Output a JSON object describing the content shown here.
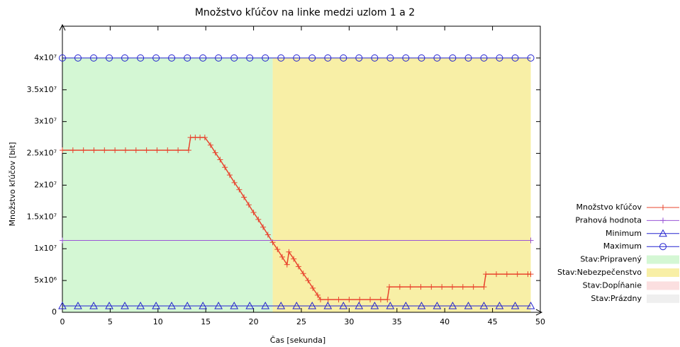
{
  "chart_data": {
    "type": "line",
    "title": "Množstvo kľúčov na linke medzi uzlom 1 a 2",
    "xlabel": "Čas [sekunda]",
    "ylabel": "Množstvo kľúčov [bit]",
    "xlim": [
      0,
      50
    ],
    "xticks": [
      0,
      5,
      10,
      15,
      20,
      25,
      30,
      35,
      40,
      45,
      50
    ],
    "ylim": [
      0,
      45000000
    ],
    "yticks": [
      0,
      {
        "value": 5000000,
        "label": "5x10⁶"
      },
      {
        "value": 10000000,
        "label": "1x10⁷"
      },
      {
        "value": 15000000,
        "label": "1.5x10⁷"
      },
      {
        "value": 20000000,
        "label": "2x10⁷"
      },
      {
        "value": 25000000,
        "label": "2.5x10⁷"
      },
      {
        "value": 30000000,
        "label": "3x10⁷"
      },
      {
        "value": 35000000,
        "label": "3.5x10⁷"
      },
      {
        "value": 40000000,
        "label": "4x10⁷"
      }
    ],
    "legend": "right",
    "series": [
      {
        "name": "Množstvo kľúčov",
        "color": "#e8442e",
        "marker": "plus",
        "x": [
          0,
          1.1,
          2.2,
          3.3,
          4.4,
          5.5,
          6.6,
          7.7,
          8.8,
          9.9,
          11,
          12.1,
          13.2,
          13.4,
          13.9,
          14.4,
          14.9,
          15.5,
          16,
          16.5,
          17,
          17.5,
          18,
          18.5,
          19,
          19.5,
          20,
          20.5,
          21,
          21.5,
          22,
          22.5,
          23,
          23.5,
          23.7,
          24.2,
          24.7,
          25.2,
          25.7,
          26.2,
          26.7,
          27,
          27.8,
          28.9,
          30,
          31.1,
          32.2,
          33.3,
          34,
          34.2,
          35.3,
          36.4,
          37.5,
          38.6,
          39.7,
          40.8,
          41.9,
          43,
          44.1,
          44.3,
          45.4,
          46.5,
          47.6,
          48.7,
          49
        ],
        "values": [
          25500000,
          25500000,
          25500000,
          25500000,
          25500000,
          25500000,
          25500000,
          25500000,
          25500000,
          25500000,
          25500000,
          25500000,
          25500000,
          27500000,
          27500000,
          27500000,
          27500000,
          26300000,
          25100000,
          24000000,
          22800000,
          21600000,
          20400000,
          19300000,
          18100000,
          16900000,
          15700000,
          14600000,
          13400000,
          12200000,
          11000000,
          9900000,
          8700000,
          7500000,
          9500000,
          8400000,
          7200000,
          6100000,
          5000000,
          3800000,
          2700000,
          2000000,
          2000000,
          2000000,
          2000000,
          2000000,
          2000000,
          2000000,
          2000000,
          4000000,
          4000000,
          4000000,
          4000000,
          4000000,
          4000000,
          4000000,
          4000000,
          4000000,
          4000000,
          6000000,
          6000000,
          6000000,
          6000000,
          6000000,
          6000000
        ]
      },
      {
        "name": "Prahová hodnota",
        "color": "#9a55d6",
        "marker": "plus",
        "x": [
          0,
          49
        ],
        "values": [
          11300000,
          11300000
        ]
      },
      {
        "name": "Minimum",
        "color": "#2323d0",
        "marker": "triangle",
        "x": [
          0,
          1.63,
          3.27,
          4.9,
          6.53,
          8.17,
          9.8,
          11.43,
          13.07,
          14.7,
          16.33,
          17.97,
          19.6,
          21.23,
          22.87,
          24.5,
          26.13,
          27.77,
          29.4,
          31.03,
          32.67,
          34.3,
          35.93,
          37.57,
          39.2,
          40.83,
          42.47,
          44.1,
          45.73,
          47.37,
          49
        ],
        "values": [
          1000000,
          1000000,
          1000000,
          1000000,
          1000000,
          1000000,
          1000000,
          1000000,
          1000000,
          1000000,
          1000000,
          1000000,
          1000000,
          1000000,
          1000000,
          1000000,
          1000000,
          1000000,
          1000000,
          1000000,
          1000000,
          1000000,
          1000000,
          1000000,
          1000000,
          1000000,
          1000000,
          1000000,
          1000000,
          1000000,
          1000000
        ]
      },
      {
        "name": "Maximum",
        "color": "#2323d0",
        "marker": "circle",
        "x": [
          0,
          1.63,
          3.27,
          4.9,
          6.53,
          8.17,
          9.8,
          11.43,
          13.07,
          14.7,
          16.33,
          17.97,
          19.6,
          21.23,
          22.87,
          24.5,
          26.13,
          27.77,
          29.4,
          31.03,
          32.67,
          34.3,
          35.93,
          37.57,
          39.2,
          40.83,
          42.47,
          44.1,
          45.73,
          47.37,
          49
        ],
        "values": [
          40000000,
          40000000,
          40000000,
          40000000,
          40000000,
          40000000,
          40000000,
          40000000,
          40000000,
          40000000,
          40000000,
          40000000,
          40000000,
          40000000,
          40000000,
          40000000,
          40000000,
          40000000,
          40000000,
          40000000,
          40000000,
          40000000,
          40000000,
          40000000,
          40000000,
          40000000,
          40000000,
          40000000,
          40000000,
          40000000,
          40000000
        ]
      }
    ],
    "states": [
      {
        "name": "Stav:Pripravený",
        "color": "#d4f7d4",
        "start": 0,
        "end": 22,
        "bottom": 0,
        "top": 40000000
      },
      {
        "name": "Stav:Nebezpečenstvo",
        "color": "#f8efa6",
        "start": 22,
        "end": 49,
        "bottom": 0,
        "top": 40000000
      },
      {
        "name": "Stav:Dopĺňanie",
        "color": "#fbdfe0"
      },
      {
        "name": "Stav:Prázdny",
        "color": "#efefef"
      }
    ]
  }
}
